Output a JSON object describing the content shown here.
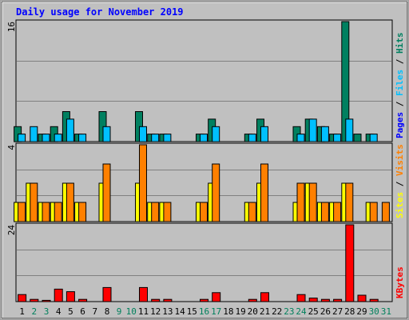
{
  "chart_data": {
    "type": "bar",
    "title": "Daily usage for November 2019",
    "categories": [
      "1",
      "2",
      "3",
      "4",
      "5",
      "6",
      "7",
      "8",
      "9",
      "10",
      "11",
      "12",
      "13",
      "14",
      "15",
      "16",
      "17",
      "18",
      "19",
      "20",
      "21",
      "22",
      "23",
      "24",
      "25",
      "26",
      "27",
      "28",
      "29",
      "30",
      "31"
    ],
    "weekend_days": [
      2,
      3,
      9,
      10,
      16,
      17,
      23,
      24,
      30,
      31
    ],
    "panels": [
      {
        "id": "hits-files-pages",
        "max_label": "16",
        "ylim": [
          0,
          16
        ],
        "ylabel": [
          "Pages",
          "Files",
          "Hits"
        ],
        "series": [
          {
            "name": "Hits",
            "color": "#008060",
            "values": [
              2,
              0,
              1,
              2,
              4,
              1,
              0,
              4,
              0,
              0,
              4,
              1,
              1,
              0,
              0,
              1,
              3,
              0,
              0,
              1,
              3,
              0,
              0,
              2,
              3,
              2,
              1,
              16,
              1,
              1,
              0
            ]
          },
          {
            "name": "Files",
            "color": "#00c0ff",
            "values": [
              1,
              2,
              1,
              1,
              3,
              1,
              0,
              2,
              0,
              0,
              2,
              1,
              1,
              0,
              0,
              1,
              2,
              0,
              0,
              1,
              2,
              0,
              0,
              1,
              3,
              2,
              1,
              3,
              0,
              1,
              0
            ]
          },
          {
            "name": "Pages",
            "color": "#0000ff",
            "values": [
              0,
              0,
              0,
              0,
              0,
              0,
              0,
              0,
              0,
              0,
              0,
              0,
              0,
              0,
              0,
              0,
              0,
              0,
              0,
              0,
              0,
              0,
              0,
              0,
              0,
              0,
              0,
              0,
              0,
              0,
              0
            ]
          }
        ]
      },
      {
        "id": "visits-sites",
        "max_label": "4",
        "ylim": [
          0,
          4
        ],
        "ylabel": [
          "Sites",
          "Visits"
        ],
        "series": [
          {
            "name": "Visits",
            "color": "#ff8000",
            "values": [
              1,
              2,
              1,
              1,
              2,
              1,
              0,
              3,
              0,
              0,
              4,
              1,
              1,
              0,
              0,
              1,
              3,
              0,
              0,
              1,
              3,
              0,
              0,
              2,
              2,
              1,
              1,
              2,
              0,
              1,
              1
            ]
          },
          {
            "name": "Sites",
            "color": "#ffff00",
            "values": [
              1,
              2,
              1,
              1,
              2,
              1,
              0,
              2,
              0,
              0,
              2,
              1,
              1,
              0,
              0,
              1,
              2,
              0,
              0,
              1,
              2,
              0,
              0,
              1,
              2,
              1,
              1,
              2,
              0,
              1,
              0
            ]
          }
        ]
      },
      {
        "id": "kbytes",
        "max_label": "24",
        "ylim": [
          0,
          24
        ],
        "ylabel": [
          "KBytes"
        ],
        "series": [
          {
            "name": "KBytes",
            "color": "#ff0000",
            "values": [
              2.2,
              0.7,
              0.4,
              3.9,
              3.1,
              0.7,
              0,
              4.4,
              0,
              0,
              4.4,
              0.7,
              0.7,
              0,
              0,
              0.7,
              2.8,
              0,
              0,
              0.7,
              2.8,
              0,
              0,
              2.2,
              1.1,
              0.7,
              0.7,
              24,
              2,
              0.7,
              0
            ]
          }
        ]
      }
    ]
  }
}
